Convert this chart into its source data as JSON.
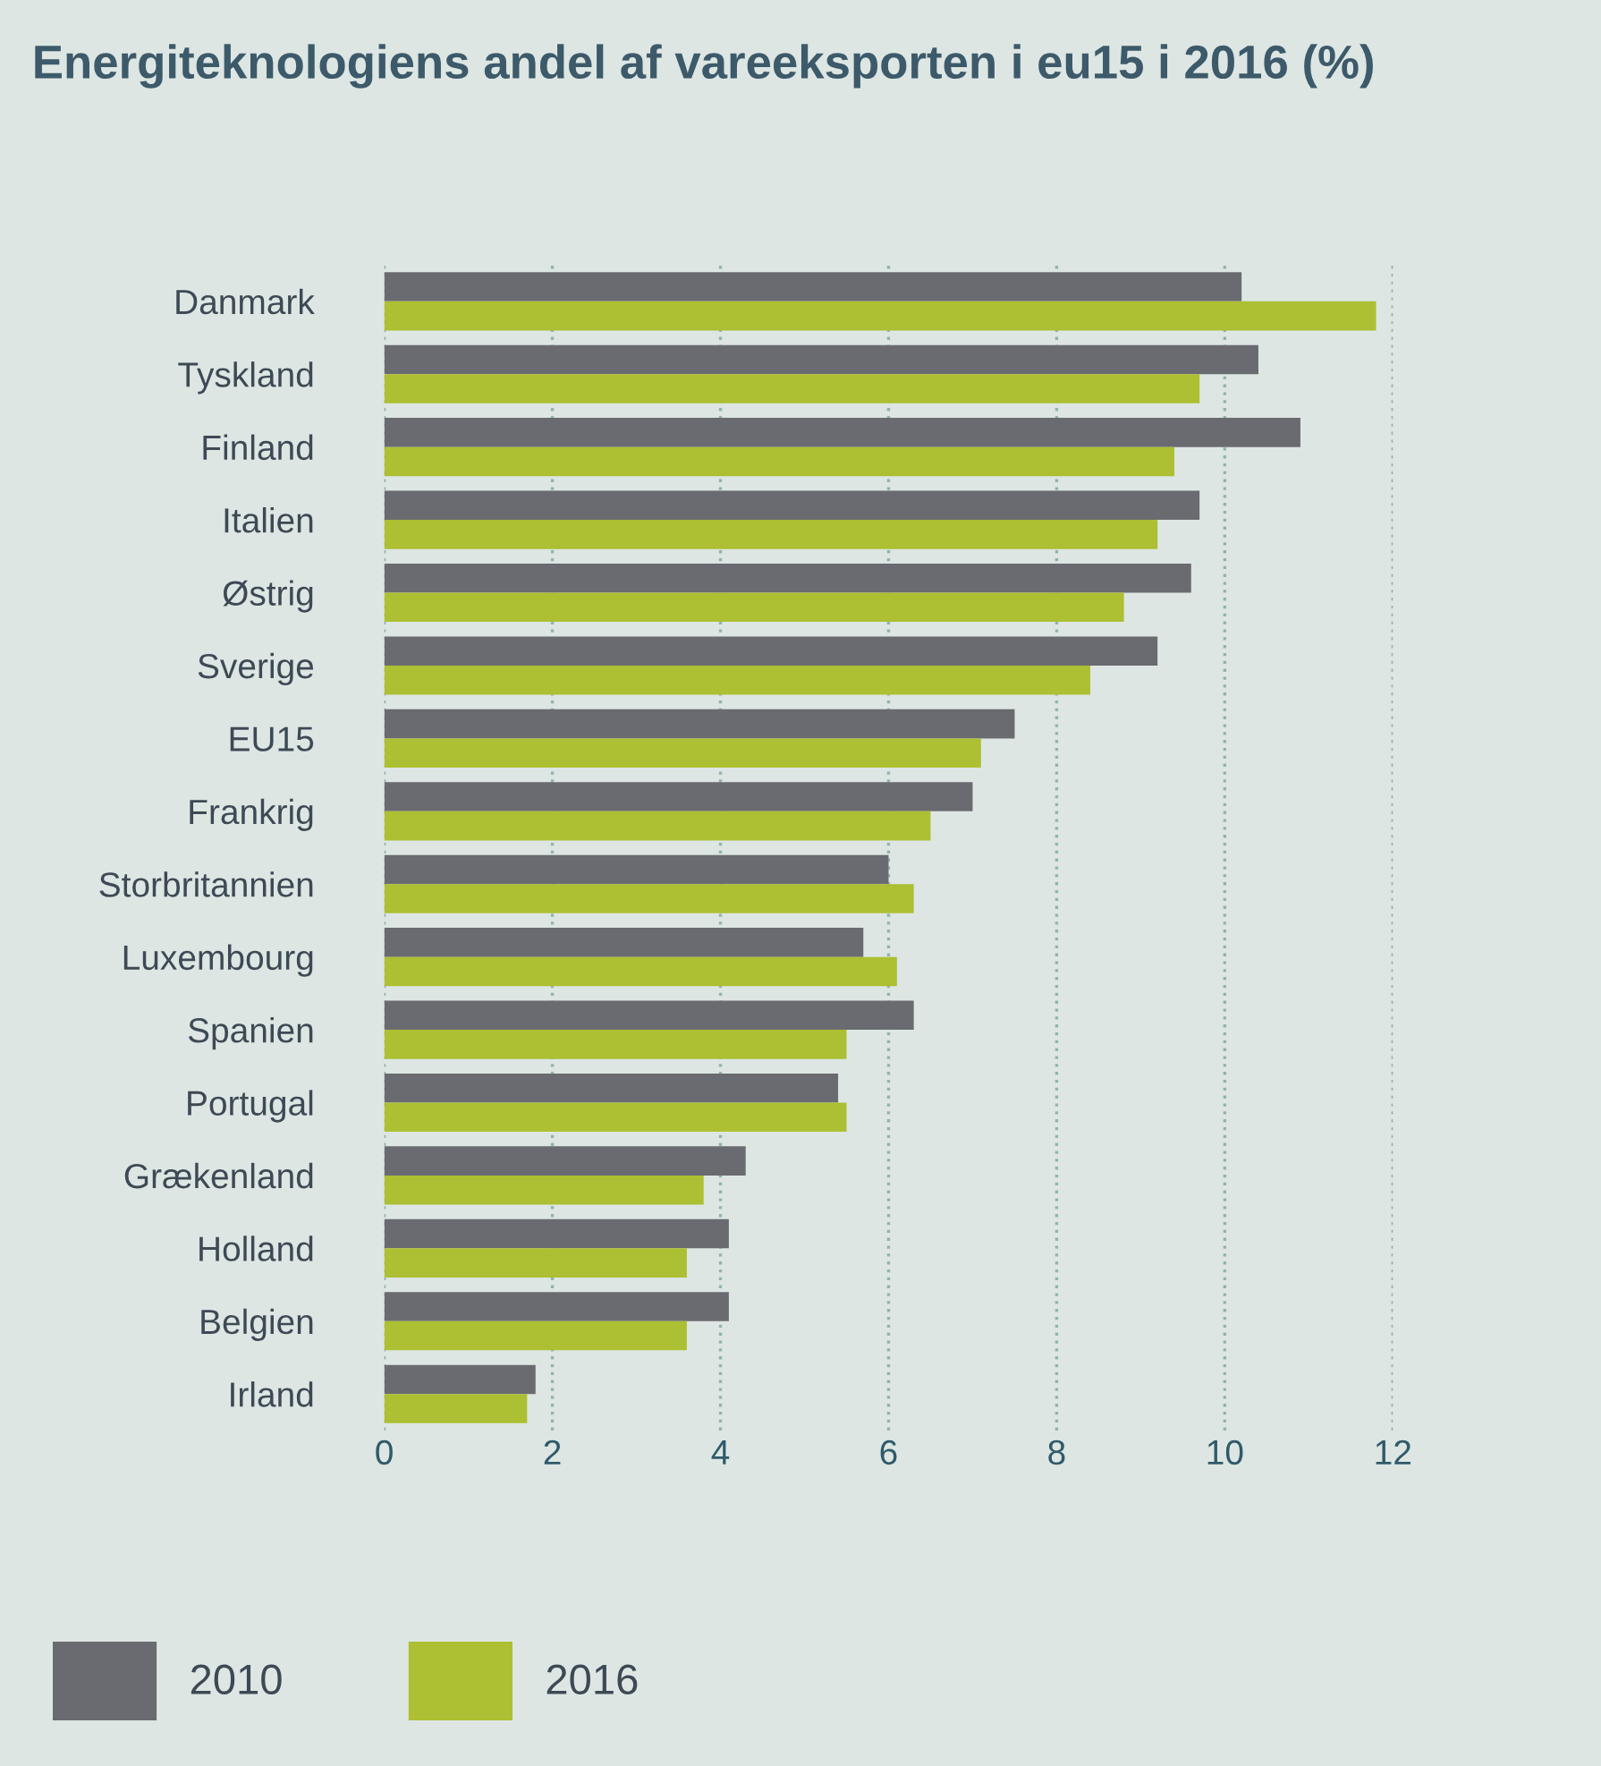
{
  "chart_data": {
    "type": "bar",
    "orientation": "horizontal",
    "title": "Energiteknologiens andel af vareeksporten i eu15 i 2016 (%)",
    "categories": [
      "Danmark",
      "Tyskland",
      "Finland",
      "Italien",
      "Østrig",
      "Sverige",
      "EU15",
      "Frankrig",
      "Storbritannien",
      "Luxembourg",
      "Spanien",
      "Portugal",
      "Grækenland",
      "Holland",
      "Belgien",
      "Irland"
    ],
    "series": [
      {
        "name": "2010",
        "color": "#6a6b70",
        "values": [
          10.2,
          10.4,
          10.9,
          9.7,
          9.6,
          9.2,
          7.5,
          7.0,
          6.0,
          5.7,
          6.3,
          5.4,
          4.3,
          4.1,
          4.1,
          1.8
        ]
      },
      {
        "name": "2016",
        "color": "#adbf32",
        "values": [
          11.8,
          9.7,
          9.4,
          9.2,
          8.8,
          8.4,
          7.1,
          6.5,
          6.3,
          6.1,
          5.5,
          5.5,
          3.8,
          3.6,
          3.6,
          1.7
        ]
      }
    ],
    "xlim": [
      0,
      12
    ],
    "xticks": [
      0,
      2,
      4,
      6,
      8,
      10,
      12
    ],
    "grid": "x",
    "legend": "bottom left"
  }
}
